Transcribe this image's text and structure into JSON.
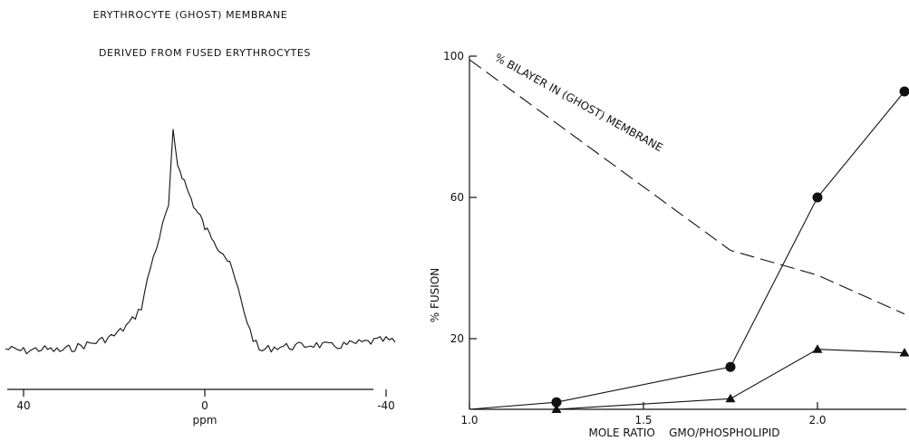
{
  "chart_data": [
    {
      "type": "line",
      "title": "ERYTHROCYTE (GHOST) MEMBRANE",
      "subtitle": "DERIVED FROM FUSED ERYTHROCYTES",
      "xlabel": "ppm",
      "ylabel": "",
      "xlim": [
        40,
        -40
      ],
      "x_ticks": [
        40,
        0,
        -40
      ],
      "x_tick_labels": [
        "40",
        "0",
        "-40"
      ],
      "grid": false,
      "series": [
        {
          "x": [
            44,
            40,
            36,
            32,
            28,
            24,
            20,
            18,
            16,
            14,
            12,
            10,
            8,
            7,
            6,
            5,
            4,
            3,
            2,
            1,
            0,
            -1,
            -2,
            -3,
            -4,
            -5,
            -6,
            -8,
            -10,
            -12,
            -14,
            -16,
            -20,
            -24,
            -28,
            -32,
            -36,
            -40,
            -42
          ],
          "y": [
            0.02,
            0.01,
            0.02,
            0.01,
            0.03,
            0.05,
            0.08,
            0.11,
            0.15,
            0.21,
            0.39,
            0.53,
            0.67,
            1.0,
            0.86,
            0.81,
            0.75,
            0.7,
            0.65,
            0.62,
            0.57,
            0.54,
            0.52,
            0.48,
            0.46,
            0.42,
            0.38,
            0.24,
            0.1,
            0.01,
            0.02,
            0.03,
            0.03,
            0.04,
            0.03,
            0.04,
            0.05,
            0.06,
            0.05
          ]
        }
      ]
    },
    {
      "type": "line",
      "title": "",
      "xlabel": "MOLE RATIO    GMO/PHOSPHOLIPID",
      "ylabel": "% FUSION",
      "xlim": [
        1.0,
        2.25
      ],
      "ylim": [
        0,
        100
      ],
      "x_ticks": [
        1.0,
        1.5,
        2.0
      ],
      "x_tick_labels": [
        "1.0",
        "1.5",
        "2.0"
      ],
      "y_ticks": [
        20,
        60,
        100
      ],
      "y_tick_labels": [
        "20",
        "60",
        "100"
      ],
      "grid": false,
      "annotations": [
        "% BILAYER IN (GHOST) MEMBRANE"
      ],
      "series": [
        {
          "marker": "circle",
          "line": "solid",
          "x": [
            1.0,
            1.25,
            1.75,
            2.0,
            2.25
          ],
          "y": [
            0,
            2,
            12,
            60,
            90
          ]
        },
        {
          "marker": "triangle",
          "line": "solid",
          "x": [
            1.0,
            1.25,
            1.75,
            2.0,
            2.25
          ],
          "y": [
            0,
            0,
            3,
            17,
            16
          ]
        },
        {
          "marker": "none",
          "line": "dashed",
          "x": [
            1.0,
            1.25,
            1.5,
            1.75,
            2.0,
            2.25
          ],
          "y": [
            99,
            81,
            63,
            45,
            38,
            27
          ]
        }
      ]
    }
  ]
}
